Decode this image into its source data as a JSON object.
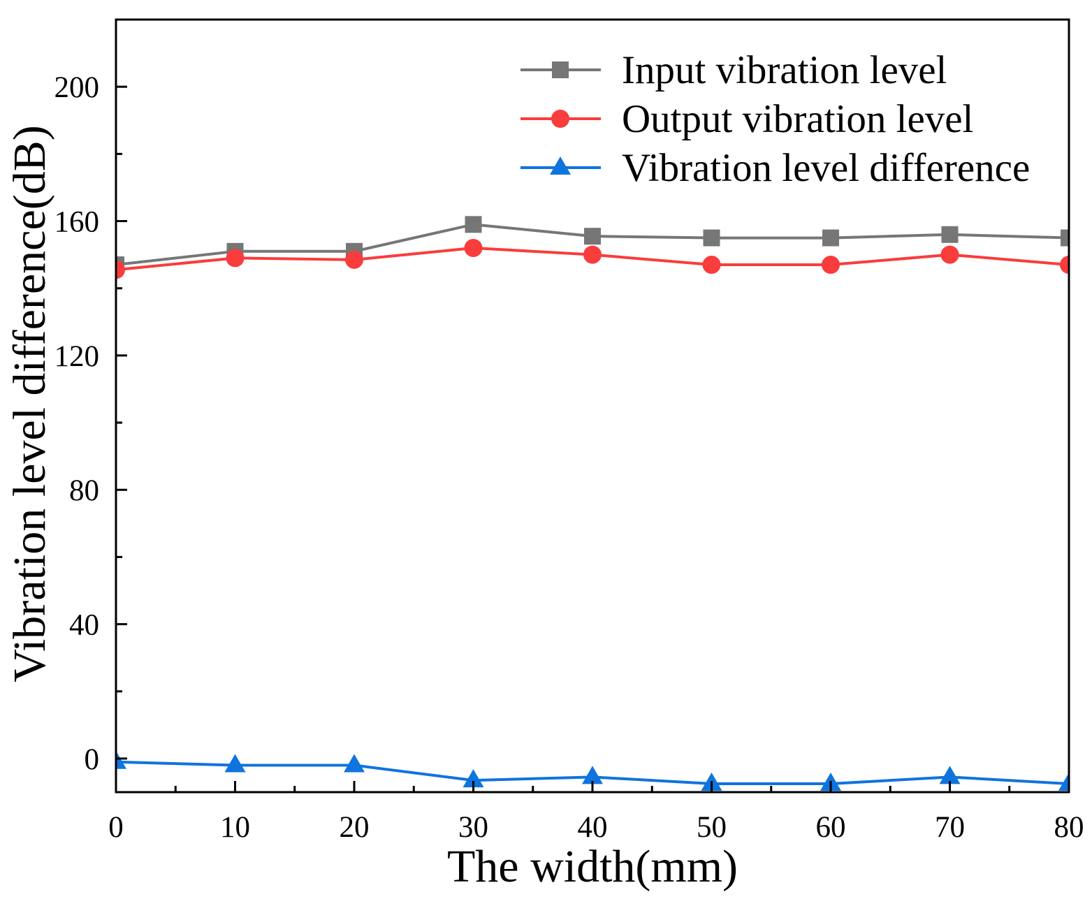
{
  "chart_data": {
    "type": "line",
    "xlabel": "The width(mm)",
    "ylabel": "Vibration level difference(dB)",
    "x": [
      0,
      10,
      20,
      30,
      40,
      50,
      60,
      70,
      80
    ],
    "xlim": [
      0,
      80
    ],
    "ylim": [
      -10,
      220
    ],
    "x_ticks": [
      0,
      10,
      20,
      30,
      40,
      50,
      60,
      70,
      80
    ],
    "y_ticks": [
      0,
      40,
      80,
      120,
      160,
      200
    ],
    "grid": false,
    "legend_position": "top-right",
    "series": [
      {
        "name": "Input vibration level",
        "marker": "square",
        "color": "#767676",
        "values": [
          147,
          151,
          151,
          159,
          155.5,
          155,
          155,
          156,
          155
        ]
      },
      {
        "name": "Output vibration level",
        "marker": "circle",
        "color": "#F93C3C",
        "values": [
          145.5,
          149,
          148.5,
          152,
          150,
          147,
          147,
          150,
          147
        ]
      },
      {
        "name": "Vibration level difference",
        "marker": "triangle",
        "color": "#0F74DE",
        "values": [
          -1,
          -2,
          -2,
          -6.5,
          -5.5,
          -7.5,
          -7.5,
          -5.5,
          -7.5
        ]
      }
    ]
  }
}
